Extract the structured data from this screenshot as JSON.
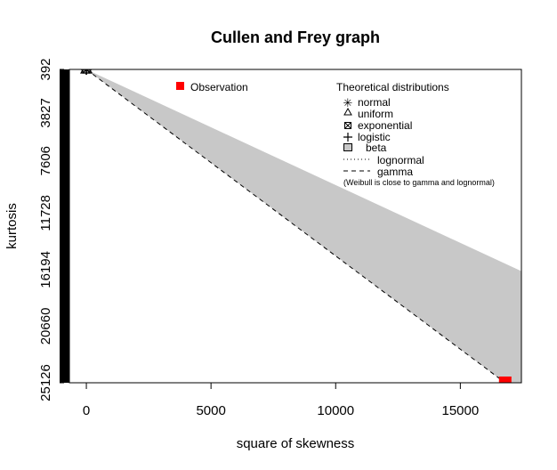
{
  "chart_data": {
    "type": "scatter",
    "title": "Cullen and Frey graph",
    "xlabel": "square of skewness",
    "ylabel": "kurtosis",
    "xlim": [
      -680,
      17450
    ],
    "ylim": [
      25126,
      392
    ],
    "y_inverted": true,
    "x_ticks": [
      0,
      5000,
      10000,
      15000
    ],
    "x_tick_labels": [
      "0",
      "5000",
      "10000",
      "15000"
    ],
    "y_ticks": [
      392,
      3827,
      7606,
      11728,
      16194,
      20660,
      25126
    ],
    "y_tick_labels": [
      "392",
      "3827",
      "7606",
      "11728",
      "16194",
      "20660",
      "25126"
    ],
    "observation": {
      "x": 16800,
      "y": 25126,
      "color": "#ff0000"
    },
    "theoretical_points": [
      {
        "name": "normal",
        "x": 0,
        "y": 392
      },
      {
        "name": "uniform",
        "x": 0,
        "y": 392
      },
      {
        "name": "exponential",
        "x": 0,
        "y": 392
      },
      {
        "name": "logistic",
        "x": 0,
        "y": 392
      }
    ],
    "beta_region_color": "#c8c8c8",
    "legend_left": {
      "observation_label": "Observation"
    },
    "legend_right": {
      "title": "Theoretical distributions",
      "items": [
        "normal",
        "uniform",
        "exponential",
        "logistic",
        "beta",
        "lognormal",
        "gamma"
      ],
      "note": "(Weibull is close to gamma and lognormal)"
    }
  }
}
